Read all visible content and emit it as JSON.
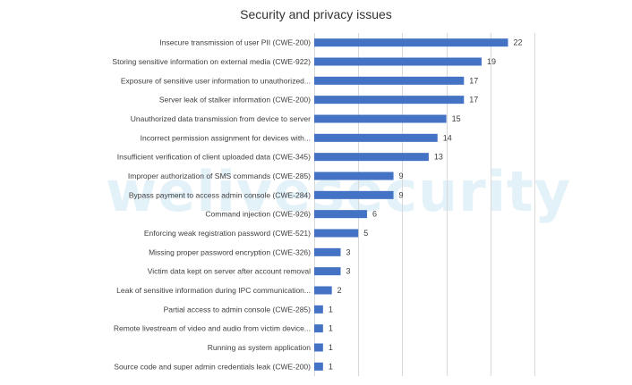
{
  "watermark": "welivesecurity",
  "chart_data": {
    "type": "bar",
    "orientation": "horizontal",
    "title": "Security and privacy issues",
    "xlabel": "",
    "ylabel": "",
    "xlim": [
      0,
      25
    ],
    "grid": "vertical",
    "legend": "none",
    "bar_color": "#4472c4",
    "categories": [
      "Insecure transmission of user PII (CWE-200)",
      "Storing sensitive information on external media (CWE-922)",
      "Exposure of sensitive user information to unauthorized...",
      "Server leak of stalker information (CWE-200)",
      "Unauthorized data transmission from device to server",
      "Incorrect permission assignment for devices with...",
      "Insufficient verification of client uploaded data (CWE-345)",
      "Improper authorization of SMS commands (CWE-285)",
      "Bypass payment to access admin console (CWE-284)",
      "Command injection (CWE-926)",
      "Enforcing weak registration password (CWE-521)",
      "Missing proper password encryption (CWE-326)",
      "Victim data kept on server after account removal",
      "Leak of sensitive information during IPC communication...",
      "Partial access to admin console (CWE-285)",
      "Remote livestream of video and audio from victim device...",
      "Running as system application",
      "Source code and super admin credentials leak (CWE-200)"
    ],
    "values": [
      22,
      19,
      17,
      17,
      15,
      14,
      13,
      9,
      9,
      6,
      5,
      3,
      3,
      2,
      1,
      1,
      1,
      1
    ],
    "data_labels": [
      "22",
      "19",
      "17",
      "17",
      "15",
      "14",
      "13",
      "9",
      "9",
      "6",
      "5",
      "3",
      "3",
      "2",
      "1",
      "1",
      "1",
      "1"
    ]
  }
}
